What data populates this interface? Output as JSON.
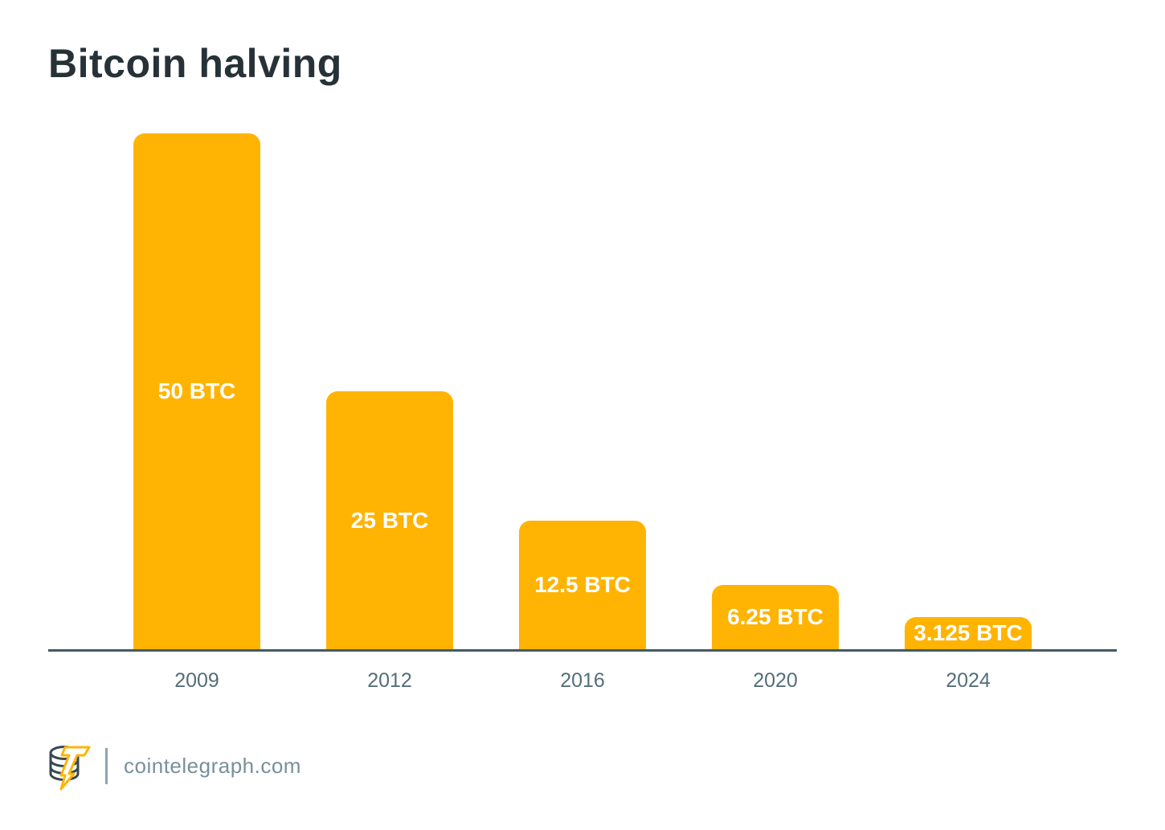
{
  "header": {
    "title": "Bitcoin halving"
  },
  "chart_data": {
    "type": "bar",
    "title": "Bitcoin halving",
    "categories": [
      "2009",
      "2012",
      "2016",
      "2020",
      "2024"
    ],
    "values": [
      50,
      25,
      12.5,
      6.25,
      3.125
    ],
    "value_labels": [
      "50 BTC",
      "25 BTC",
      "12.5 BTC",
      "6.25 BTC",
      "3.125 BTC"
    ],
    "xlabel": "",
    "ylabel": "",
    "ylim": [
      0,
      50
    ],
    "grid": false,
    "legend": false,
    "bar_color": "#FFB404",
    "bar_label_color": "#FFFFFF",
    "axis_color": "#455A64",
    "tick_color": "#546E7A",
    "title_color": "#263238"
  },
  "footer": {
    "site": "cointelegraph.com",
    "logo": "cointelegraph-coin-bolt-logo",
    "logo_coin_color": "#37474F",
    "logo_bolt_color": "#FFB404",
    "text_color": "#78909C"
  }
}
